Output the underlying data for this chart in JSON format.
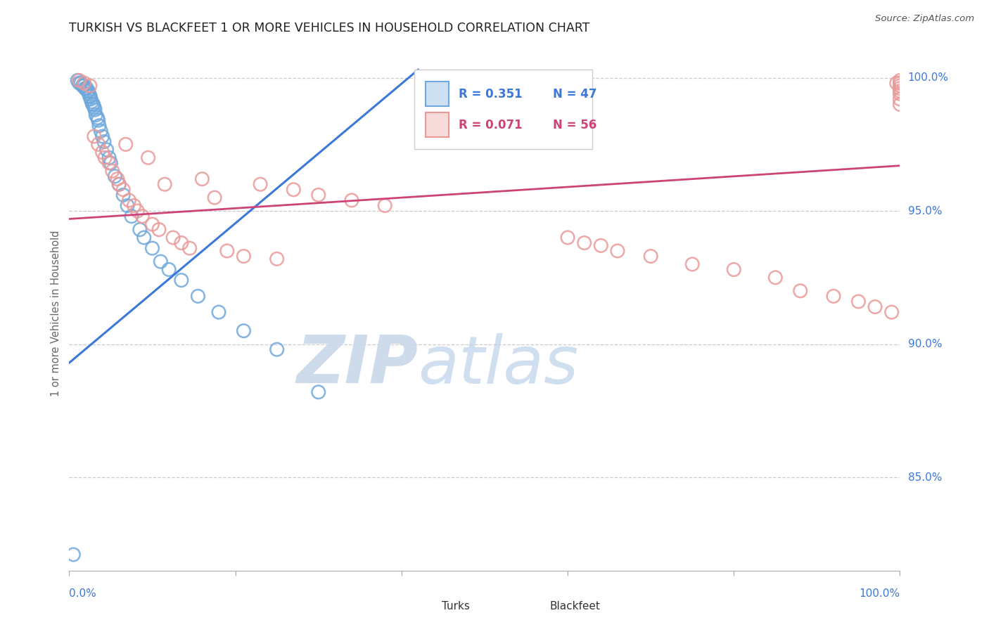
{
  "title": "TURKISH VS BLACKFEET 1 OR MORE VEHICLES IN HOUSEHOLD CORRELATION CHART",
  "source": "Source: ZipAtlas.com",
  "ylabel": "1 or more Vehicles in Household",
  "ytick_values": [
    0.85,
    0.9,
    0.95,
    1.0
  ],
  "ytick_labels": [
    "85.0%",
    "90.0%",
    "95.0%",
    "100.0%"
  ],
  "turks_color": "#6fa8dc",
  "blackfeet_color": "#ea9999",
  "turks_line_color": "#3c78d8",
  "blackfeet_line_color": "#cc4477",
  "turks_R": "R = 0.351",
  "turks_N": "N = 47",
  "blackfeet_R": "R = 0.071",
  "blackfeet_N": "N = 56",
  "watermark_zip": "ZIP",
  "watermark_atlas": "atlas",
  "background_color": "#ffffff",
  "xlim": [
    0.0,
    1.0
  ],
  "ylim": [
    0.815,
    1.008
  ],
  "turks_line_x0": 0.0,
  "turks_line_y0": 0.893,
  "turks_line_x1": 0.42,
  "turks_line_y1": 1.003,
  "blackfeet_line_x0": 0.0,
  "blackfeet_line_y0": 0.947,
  "blackfeet_line_x1": 1.0,
  "blackfeet_line_y1": 0.967,
  "turks_x": [
    0.005,
    0.01,
    0.012,
    0.014,
    0.016,
    0.017,
    0.018,
    0.019,
    0.02,
    0.021,
    0.022,
    0.023,
    0.024,
    0.025,
    0.025,
    0.026,
    0.027,
    0.028,
    0.029,
    0.03,
    0.031,
    0.032,
    0.034,
    0.035,
    0.036,
    0.038,
    0.04,
    0.042,
    0.045,
    0.048,
    0.05,
    0.055,
    0.06,
    0.065,
    0.07,
    0.075,
    0.085,
    0.09,
    0.1,
    0.11,
    0.12,
    0.135,
    0.155,
    0.18,
    0.21,
    0.25,
    0.3
  ],
  "turks_y": [
    0.821,
    0.999,
    0.998,
    0.998,
    0.997,
    0.997,
    0.997,
    0.996,
    0.996,
    0.996,
    0.995,
    0.995,
    0.994,
    0.993,
    0.993,
    0.992,
    0.991,
    0.99,
    0.99,
    0.989,
    0.988,
    0.986,
    0.985,
    0.984,
    0.982,
    0.98,
    0.978,
    0.976,
    0.973,
    0.97,
    0.968,
    0.963,
    0.96,
    0.956,
    0.952,
    0.948,
    0.943,
    0.94,
    0.936,
    0.931,
    0.928,
    0.924,
    0.918,
    0.912,
    0.905,
    0.898,
    0.882
  ],
  "blackfeet_x": [
    0.012,
    0.018,
    0.025,
    0.03,
    0.035,
    0.04,
    0.043,
    0.048,
    0.052,
    0.058,
    0.06,
    0.065,
    0.068,
    0.072,
    0.078,
    0.082,
    0.088,
    0.095,
    0.1,
    0.108,
    0.115,
    0.125,
    0.135,
    0.145,
    0.16,
    0.175,
    0.19,
    0.21,
    0.23,
    0.25,
    0.27,
    0.3,
    0.34,
    0.38,
    0.6,
    0.62,
    0.64,
    0.66,
    0.7,
    0.75,
    0.8,
    0.85,
    0.88,
    0.92,
    0.95,
    0.97,
    0.99,
    0.996,
    1.0,
    1.0,
    1.0,
    1.0,
    1.0,
    1.0,
    1.0,
    1.0
  ],
  "blackfeet_y": [
    0.999,
    0.998,
    0.997,
    0.978,
    0.975,
    0.972,
    0.97,
    0.968,
    0.965,
    0.962,
    0.96,
    0.958,
    0.975,
    0.954,
    0.952,
    0.95,
    0.948,
    0.97,
    0.945,
    0.943,
    0.96,
    0.94,
    0.938,
    0.936,
    0.962,
    0.955,
    0.935,
    0.933,
    0.96,
    0.932,
    0.958,
    0.956,
    0.954,
    0.952,
    0.94,
    0.938,
    0.937,
    0.935,
    0.933,
    0.93,
    0.928,
    0.925,
    0.92,
    0.918,
    0.916,
    0.914,
    0.912,
    0.998,
    0.999,
    0.998,
    0.997,
    0.996,
    0.995,
    0.994,
    0.992,
    0.99
  ]
}
